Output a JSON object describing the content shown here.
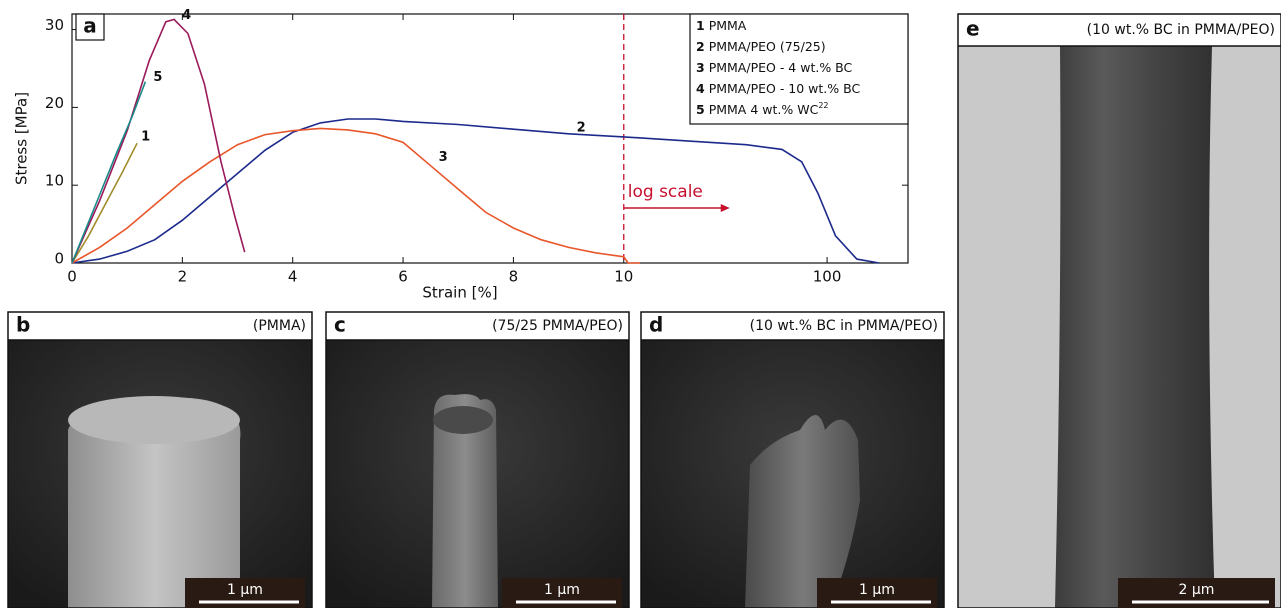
{
  "chart_data": {
    "type": "line",
    "panel_letter": "a",
    "xlabel": "Strain [%]",
    "ylabel": "Stress [MPa]",
    "xlim": [
      0,
      250
    ],
    "ylim": [
      0,
      32
    ],
    "log_break": 10,
    "xticks": [
      0,
      2,
      4,
      6,
      8,
      10,
      100
    ],
    "yticks": [
      0,
      10,
      20,
      30
    ],
    "marker_line": {
      "x": 10,
      "color": "#c8102e"
    },
    "annotation": {
      "text": "log scale",
      "color": "#c8102e"
    },
    "series": [
      {
        "label": "1",
        "name": "PMMA",
        "color": "#a08d2c",
        "x": [
          0,
          0.3,
          0.6,
          0.9,
          1.18
        ],
        "values": [
          0,
          3.5,
          7.5,
          11.5,
          15.4
        ]
      },
      {
        "label": "2",
        "name": "PMMA/PEO (75/25)",
        "color": "#1c2a8c",
        "x": [
          0,
          0.5,
          1,
          1.5,
          2,
          2.5,
          3,
          3.5,
          4,
          4.5,
          5,
          5.5,
          6,
          7,
          8,
          9,
          10,
          20,
          40,
          60,
          75,
          90,
          110,
          140,
          180
        ],
        "values": [
          0,
          0.5,
          1.5,
          3,
          5.5,
          8.5,
          11.5,
          14.5,
          16.8,
          18,
          18.5,
          18.5,
          18.2,
          17.8,
          17.2,
          16.6,
          16.2,
          15.7,
          15.2,
          14.6,
          13,
          9,
          3.5,
          0.5,
          0
        ]
      },
      {
        "label": "3",
        "name": "PMMA/PEO - 4 wt.% BC",
        "color": "#e8562a",
        "x": [
          0,
          0.5,
          1,
          1.5,
          2,
          2.5,
          3,
          3.5,
          4,
          4.5,
          5,
          5.5,
          6,
          6.5,
          7,
          7.5,
          8,
          8.5,
          9,
          9.5,
          10,
          10.5,
          12
        ],
        "values": [
          0,
          2,
          4.5,
          7.5,
          10.5,
          13,
          15.2,
          16.5,
          17,
          17.3,
          17.1,
          16.6,
          15.5,
          12.5,
          9.5,
          6.5,
          4.5,
          3,
          2,
          1.3,
          0.8,
          0,
          0
        ]
      },
      {
        "label": "4",
        "name": "PMMA/PEO - 10 wt.% BC",
        "color": "#9b1b5a",
        "x": [
          0,
          0.5,
          1,
          1.4,
          1.7,
          1.85,
          2.1,
          2.4,
          2.7,
          2.95,
          3.13
        ],
        "values": [
          0,
          8,
          17,
          26,
          31,
          31.3,
          29.5,
          23,
          13,
          6,
          1.4
        ]
      },
      {
        "label": "5",
        "name": "PMMA 4 wt.% WC",
        "ref": "22",
        "color": "#1a8a8a",
        "x": [
          0,
          0.4,
          0.8,
          1.1,
          1.33
        ],
        "values": [
          0,
          7,
          14,
          19,
          23.3
        ]
      }
    ]
  },
  "panels": [
    {
      "letter": "b",
      "title": "(PMMA)",
      "scale": "1 μm"
    },
    {
      "letter": "c",
      "title": "(75/25 PMMA/PEO)",
      "scale": "1 μm"
    },
    {
      "letter": "d",
      "title": "(10 wt.% BC in PMMA/PEO)",
      "scale": "1 μm"
    },
    {
      "letter": "e",
      "title": "(10 wt.% BC in PMMA/PEO)",
      "scale": "2 μm"
    }
  ]
}
